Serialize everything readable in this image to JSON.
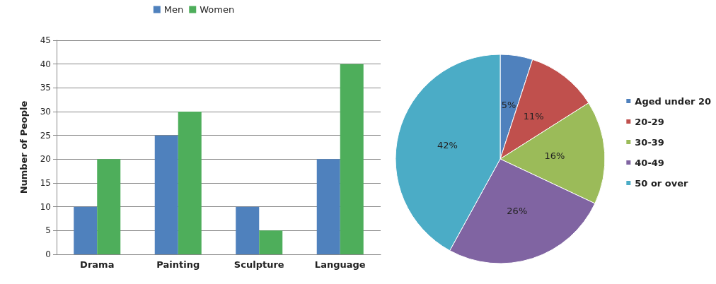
{
  "chart_data": [
    {
      "type": "bar",
      "ylabel": "Number of People",
      "categories": [
        "Drama",
        "Painting",
        "Sculpture",
        "Language"
      ],
      "series": [
        {
          "name": "Men",
          "color": "#4f81bd",
          "values": [
            10,
            25,
            10,
            20
          ]
        },
        {
          "name": "Women",
          "color": "#4eae5b",
          "values": [
            20,
            30,
            5,
            40
          ]
        }
      ],
      "ylim": [
        0,
        45
      ],
      "yticks": [
        0,
        5,
        10,
        15,
        20,
        25,
        30,
        35,
        40,
        45
      ],
      "grid": "y",
      "legend": "top"
    },
    {
      "type": "pie",
      "categories": [
        "Aged under 20",
        "20-29",
        "30-39",
        "40-49",
        "50 or over"
      ],
      "values": [
        5,
        11,
        16,
        26,
        42
      ],
      "colors": [
        "#4f81bd",
        "#c0504d",
        "#9bbb59",
        "#8064a2",
        "#4bacc6"
      ],
      "value_labels": [
        "5%",
        "11%",
        "16%",
        "26%",
        "42%"
      ],
      "legend": "right"
    }
  ]
}
